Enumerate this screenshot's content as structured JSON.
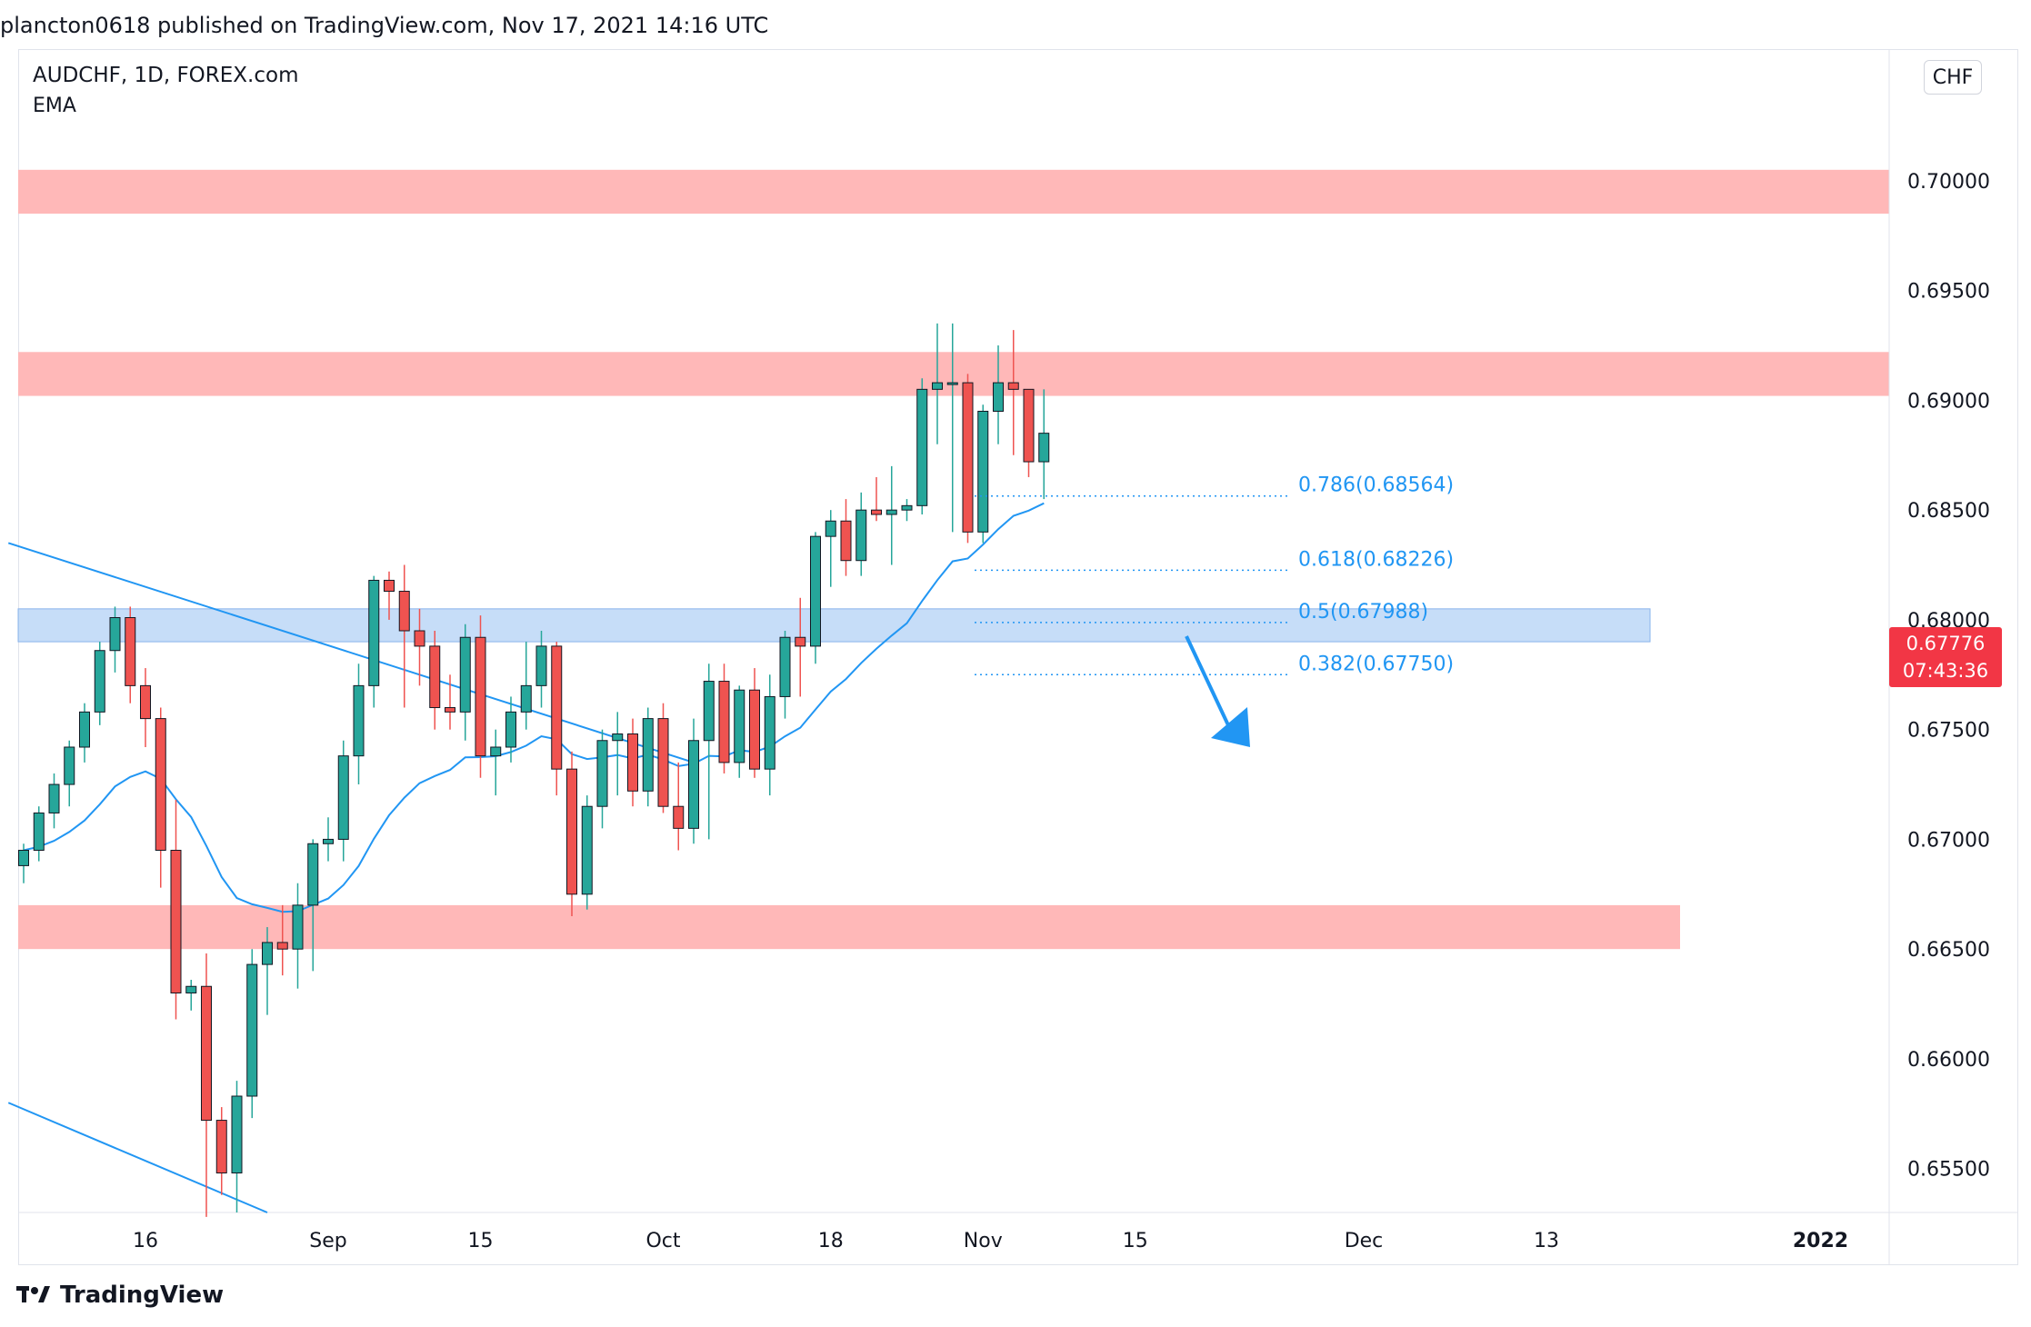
{
  "header": {
    "text": "plancton0618 published on TradingView.com, Nov 17, 2021 14:16 UTC"
  },
  "legend": {
    "symbol": "AUDCHF, 1D, FOREX.com",
    "indicator": "EMA"
  },
  "currency": "CHF",
  "last_price": {
    "value": "0.67776",
    "countdown": "07:43:36"
  },
  "brand": {
    "name": "TradingView"
  },
  "colors": {
    "up": "#26a69a",
    "down": "#ef5350",
    "ema": "#2196f3",
    "resistance_zone": "#ffb8b8",
    "support_zone": "#b3d1f5",
    "price_tag": "#f23645"
  },
  "chart_data": {
    "type": "candlestick",
    "title": "AUDCHF, 1D, FOREX.com",
    "y_range": [
      0.653,
      0.706
    ],
    "y_ticks": [
      "0.70000",
      "0.69500",
      "0.69000",
      "0.68500",
      "0.68000",
      "0.67500",
      "0.67000",
      "0.66500",
      "0.66000",
      "0.65500"
    ],
    "x_ticks": [
      {
        "label": "16",
        "idx": 8
      },
      {
        "label": "Sep",
        "idx": 20
      },
      {
        "label": "15",
        "idx": 30
      },
      {
        "label": "Oct",
        "idx": 42
      },
      {
        "label": "18",
        "idx": 53
      },
      {
        "label": "Nov",
        "idx": 63
      },
      {
        "label": "15",
        "idx": 73
      },
      {
        "label": "Dec",
        "idx": 88
      },
      {
        "label": "13",
        "idx": 100
      },
      {
        "label": "2022",
        "idx": 118
      }
    ],
    "candles": [
      [
        0.6688,
        0.6698,
        0.668,
        0.6695
      ],
      [
        0.6695,
        0.6715,
        0.669,
        0.6712
      ],
      [
        0.6712,
        0.673,
        0.6705,
        0.6725
      ],
      [
        0.6725,
        0.6745,
        0.6715,
        0.6742
      ],
      [
        0.6742,
        0.6762,
        0.6735,
        0.6758
      ],
      [
        0.6758,
        0.679,
        0.6752,
        0.6786
      ],
      [
        0.6786,
        0.6806,
        0.6776,
        0.6801
      ],
      [
        0.6801,
        0.6806,
        0.6762,
        0.677
      ],
      [
        0.677,
        0.6778,
        0.6742,
        0.6755
      ],
      [
        0.6755,
        0.676,
        0.6678,
        0.6695
      ],
      [
        0.6695,
        0.6718,
        0.6618,
        0.663
      ],
      [
        0.663,
        0.6636,
        0.6622,
        0.6633
      ],
      [
        0.6633,
        0.6648,
        0.6528,
        0.6572
      ],
      [
        0.6572,
        0.6578,
        0.6538,
        0.6548
      ],
      [
        0.6548,
        0.659,
        0.653,
        0.6583
      ],
      [
        0.6583,
        0.665,
        0.6573,
        0.6643
      ],
      [
        0.6643,
        0.666,
        0.662,
        0.6653
      ],
      [
        0.6653,
        0.667,
        0.6638,
        0.665
      ],
      [
        0.665,
        0.668,
        0.6632,
        0.667
      ],
      [
        0.667,
        0.67,
        0.664,
        0.6698
      ],
      [
        0.6698,
        0.671,
        0.669,
        0.67
      ],
      [
        0.67,
        0.6745,
        0.669,
        0.6738
      ],
      [
        0.6738,
        0.678,
        0.6725,
        0.677
      ],
      [
        0.677,
        0.682,
        0.676,
        0.6818
      ],
      [
        0.6818,
        0.6822,
        0.68,
        0.6813
      ],
      [
        0.6813,
        0.6825,
        0.676,
        0.6795
      ],
      [
        0.6795,
        0.6805,
        0.677,
        0.6788
      ],
      [
        0.6788,
        0.6795,
        0.675,
        0.676
      ],
      [
        0.676,
        0.6775,
        0.675,
        0.6758
      ],
      [
        0.6758,
        0.6798,
        0.6745,
        0.6792
      ],
      [
        0.6792,
        0.6802,
        0.6728,
        0.6738
      ],
      [
        0.6738,
        0.675,
        0.672,
        0.6742
      ],
      [
        0.6742,
        0.6765,
        0.6735,
        0.6758
      ],
      [
        0.6758,
        0.679,
        0.675,
        0.677
      ],
      [
        0.677,
        0.6795,
        0.676,
        0.6788
      ],
      [
        0.6788,
        0.679,
        0.672,
        0.6732
      ],
      [
        0.6732,
        0.674,
        0.6665,
        0.6675
      ],
      [
        0.6675,
        0.672,
        0.6668,
        0.6715
      ],
      [
        0.6715,
        0.675,
        0.6705,
        0.6745
      ],
      [
        0.6745,
        0.6758,
        0.672,
        0.6748
      ],
      [
        0.6748,
        0.6755,
        0.6715,
        0.6722
      ],
      [
        0.6722,
        0.676,
        0.6715,
        0.6755
      ],
      [
        0.6755,
        0.6762,
        0.6712,
        0.6715
      ],
      [
        0.6715,
        0.6735,
        0.6695,
        0.6705
      ],
      [
        0.6705,
        0.6755,
        0.6698,
        0.6745
      ],
      [
        0.6745,
        0.678,
        0.67,
        0.6772
      ],
      [
        0.6772,
        0.678,
        0.673,
        0.6735
      ],
      [
        0.6735,
        0.677,
        0.6728,
        0.6768
      ],
      [
        0.6768,
        0.6778,
        0.6728,
        0.6732
      ],
      [
        0.6732,
        0.6775,
        0.672,
        0.6765
      ],
      [
        0.6765,
        0.6795,
        0.6755,
        0.6792
      ],
      [
        0.6792,
        0.681,
        0.6765,
        0.6788
      ],
      [
        0.6788,
        0.684,
        0.678,
        0.6838
      ],
      [
        0.6838,
        0.685,
        0.6815,
        0.6845
      ],
      [
        0.6845,
        0.6855,
        0.682,
        0.6827
      ],
      [
        0.6827,
        0.6858,
        0.682,
        0.685
      ],
      [
        0.685,
        0.6865,
        0.6845,
        0.6848
      ],
      [
        0.6848,
        0.687,
        0.6825,
        0.685
      ],
      [
        0.685,
        0.6855,
        0.6845,
        0.6852
      ],
      [
        0.6852,
        0.691,
        0.6848,
        0.6905
      ],
      [
        0.6905,
        0.6935,
        0.688,
        0.6908
      ],
      [
        0.6908,
        0.6935,
        0.684,
        0.6908
      ],
      [
        0.6908,
        0.6912,
        0.6835,
        0.684
      ],
      [
        0.684,
        0.6898,
        0.6835,
        0.6895
      ],
      [
        0.6895,
        0.6925,
        0.688,
        0.6908
      ],
      [
        0.6908,
        0.6932,
        0.6875,
        0.6905
      ],
      [
        0.6905,
        0.6905,
        0.6865,
        0.6872
      ],
      [
        0.6872,
        0.6905,
        0.6855,
        0.6885
      ]
    ],
    "ema_label": "EMA",
    "fibonacci": [
      {
        "label": "0.786(0.68564)",
        "level": 0.68564
      },
      {
        "label": "0.618(0.68226)",
        "level": 0.68226
      },
      {
        "label": "0.5(0.67988)",
        "level": 0.67988
      },
      {
        "label": "0.382(0.67750)",
        "level": 0.6775
      }
    ],
    "zones": [
      {
        "kind": "resistance",
        "from": 0.6985,
        "to": 0.7005
      },
      {
        "kind": "resistance",
        "from": 0.6902,
        "to": 0.6922
      },
      {
        "kind": "support",
        "from": 0.679,
        "to": 0.6805
      },
      {
        "kind": "resistance",
        "from": 0.665,
        "to": 0.667
      }
    ],
    "trendlines": [
      {
        "from_idx": -1,
        "from_price": 0.6835,
        "to_idx": 44,
        "to_price": 0.6735
      },
      {
        "from_idx": -1,
        "from_price": 0.658,
        "to_idx": 16,
        "to_price": 0.653
      }
    ],
    "projection": "down"
  }
}
